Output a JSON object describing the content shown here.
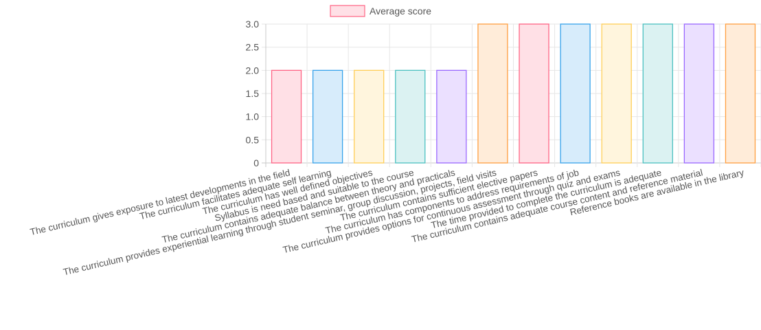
{
  "chart_data": {
    "type": "bar",
    "legend": {
      "label": "Average score",
      "color": "#ff6384",
      "fill": "#ffe0e6",
      "placement": "top-center"
    },
    "categories": [
      "The curriculum gives exposure to latest developments in the field",
      "The curriculum facilitates adequate self learning",
      "The curriculum has well defined objectives",
      "Syllabus is need based and suitable to the course",
      "The curriculum contains adequate balance between theory and practicals",
      "The curriculum provides experiential learning through student seminar, group discussion, projects, field visits",
      "The curriculum contains sufficient elective papers",
      "The curriculum has components to address requirements of job",
      "The curriculum provides options for continuous assessment through quiz and exams",
      "The time provided to complete the curriculum is adequate",
      "The curriculum contains adequate course content and reference material",
      "Reference books are available in the library"
    ],
    "series": [
      {
        "name": "Average score",
        "values": [
          2,
          2,
          2,
          2,
          2,
          3,
          3,
          3,
          3,
          3,
          3,
          3
        ]
      }
    ],
    "bar_colors": [
      {
        "border": "#ff6384",
        "fill": "#ffe0e6"
      },
      {
        "border": "#36a2eb",
        "fill": "#d7ecfb"
      },
      {
        "border": "#ffce56",
        "fill": "#fff5dd"
      },
      {
        "border": "#4bc0c0",
        "fill": "#dbf2f2"
      },
      {
        "border": "#9966ff",
        "fill": "#ebe0ff"
      },
      {
        "border": "#ff9f40",
        "fill": "#ffecd9"
      },
      {
        "border": "#ff6384",
        "fill": "#ffe0e6"
      },
      {
        "border": "#36a2eb",
        "fill": "#d7ecfb"
      },
      {
        "border": "#ffce56",
        "fill": "#fff5dd"
      },
      {
        "border": "#4bc0c0",
        "fill": "#dbf2f2"
      },
      {
        "border": "#9966ff",
        "fill": "#ebe0ff"
      },
      {
        "border": "#ff9f40",
        "fill": "#ffecd9"
      }
    ],
    "y_ticks": [
      "0",
      "0.5",
      "1.0",
      "1.5",
      "2.0",
      "2.5",
      "3.0"
    ],
    "ylim": [
      0,
      3
    ],
    "grid": true,
    "xlabel": "",
    "ylabel": ""
  }
}
